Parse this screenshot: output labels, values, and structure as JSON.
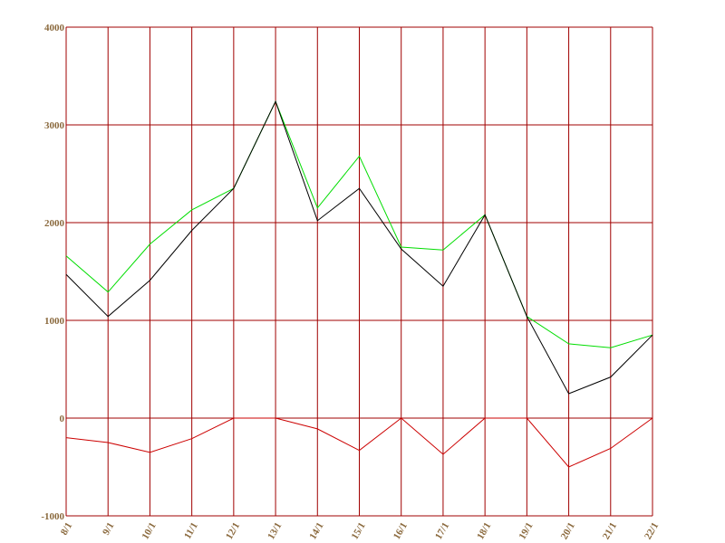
{
  "chart_data": {
    "type": "line",
    "categories": [
      "8/1",
      "9/1",
      "10/1",
      "11/1",
      "12/1",
      "13/1",
      "14/1",
      "15/1",
      "16/1",
      "17/1",
      "18/1",
      "19/1",
      "20/1",
      "21/1",
      "22/1"
    ],
    "series": [
      {
        "color": "#00dd00",
        "values": [
          1660,
          1290,
          1780,
          2130,
          2350,
          3240,
          2150,
          2680,
          1750,
          1720,
          2080,
          1040,
          760,
          720,
          850
        ]
      },
      {
        "color": "#000000",
        "values": [
          1470,
          1040,
          1410,
          1920,
          2350,
          3240,
          2020,
          2350,
          1730,
          1350,
          2080,
          1040,
          250,
          420,
          850
        ]
      },
      {
        "color": "#cc0000",
        "values": [
          -200,
          -250,
          -350,
          -210,
          0,
          0,
          -110,
          -330,
          0,
          -370,
          0,
          0,
          -500,
          -310,
          0
        ]
      }
    ],
    "ylim": [
      -1000,
      4000
    ],
    "yticks": [
      -1000,
      0,
      1000,
      2000,
      3000,
      4000
    ],
    "grid": true,
    "grid_color": "#a00000"
  }
}
